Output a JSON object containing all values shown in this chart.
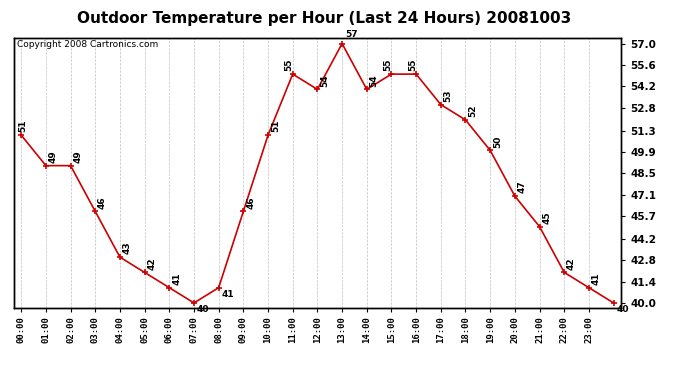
{
  "title": "Outdoor Temperature per Hour (Last 24 Hours) 20081003",
  "copyright": "Copyright 2008 Cartronics.com",
  "hours": [
    "00:00",
    "01:00",
    "02:00",
    "03:00",
    "04:00",
    "05:00",
    "06:00",
    "07:00",
    "08:00",
    "09:00",
    "10:00",
    "11:00",
    "12:00",
    "13:00",
    "14:00",
    "15:00",
    "16:00",
    "17:00",
    "18:00",
    "19:00",
    "20:00",
    "21:00",
    "22:00",
    "23:00"
  ],
  "temps": [
    51,
    49,
    49,
    46,
    43,
    42,
    41,
    40,
    41,
    46,
    51,
    55,
    54,
    57,
    54,
    55,
    55,
    53,
    52,
    50,
    47,
    45,
    42,
    41,
    40
  ],
  "x_vals": [
    0,
    1,
    2,
    3,
    4,
    5,
    6,
    7,
    8,
    9,
    10,
    11,
    12,
    13,
    14,
    15,
    16,
    17,
    18,
    19,
    20,
    21,
    22,
    23,
    24
  ],
  "ylim_min": 39.7,
  "ylim_max": 57.4,
  "yticks": [
    40.0,
    41.4,
    42.8,
    44.2,
    45.7,
    47.1,
    48.5,
    49.9,
    51.3,
    52.8,
    54.2,
    55.6,
    57.0
  ],
  "line_color": "#cc0000",
  "bg_color": "#ffffff",
  "grid_color": "#b0b0b0",
  "title_fontsize": 11,
  "copyright_fontsize": 6.5,
  "label_fontsize": 6.5
}
